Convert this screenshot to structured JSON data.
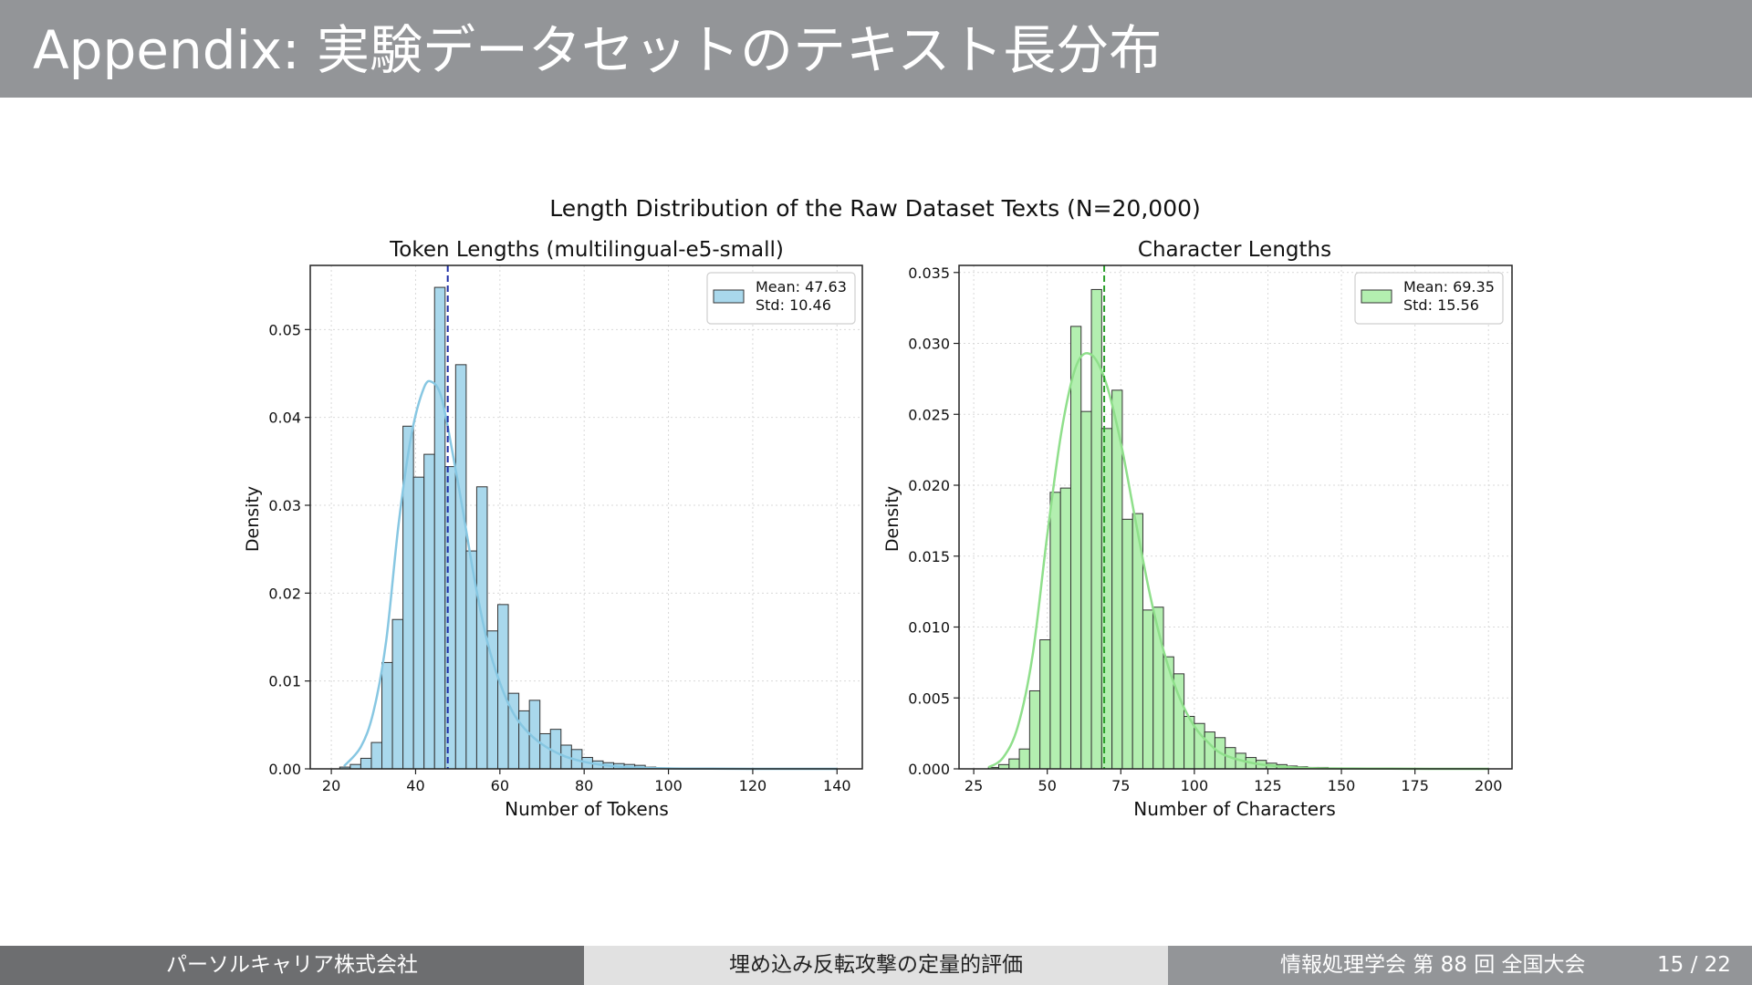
{
  "slide": {
    "title": "Appendix: 実験データセットのテキスト長分布"
  },
  "footer": {
    "company": "パーソルキャリア株式会社",
    "topic": "埋め込み反転攻撃の定量的評価",
    "conference": "情報処理学会 第 88 回 全国大会",
    "page": "15 / 22"
  },
  "colors": {
    "title_bar": "#939598",
    "footer_left": "#6d6e70",
    "footer_center": "#e1e1e1",
    "footer_right": "#939598",
    "token_bars": "#a9d8ec",
    "token_kde": "#87c7e2",
    "token_mean_line": "#1f2fa8",
    "char_bars": "#b3efb0",
    "char_kde": "#8fdf8b",
    "char_mean_line": "#2ca02c"
  },
  "chart_data": [
    {
      "type": "bar",
      "suptitle": "Length Distribution of the Raw Dataset Texts (N=20,000)",
      "title": "Token Lengths (multilingual-e5-small)",
      "xlabel": "Number of Tokens",
      "ylabel": "Density",
      "xlim": [
        15,
        146
      ],
      "ylim": [
        0,
        0.0573
      ],
      "xticks": [
        "20",
        "40",
        "60",
        "80",
        "100",
        "120",
        "140"
      ],
      "yticks": [
        "0.00",
        "0.01",
        "0.02",
        "0.03",
        "0.04",
        "0.05"
      ],
      "grid": true,
      "bin_start": 22,
      "bin_width": 2.5,
      "values": [
        0.0002,
        0.0005,
        0.0012,
        0.003,
        0.0121,
        0.017,
        0.039,
        0.0332,
        0.0358,
        0.0548,
        0.0344,
        0.046,
        0.0248,
        0.0321,
        0.0157,
        0.0187,
        0.0086,
        0.0066,
        0.0078,
        0.004,
        0.0045,
        0.0027,
        0.0022,
        0.0013,
        0.0009,
        0.0007,
        0.0006,
        0.0005,
        0.0004,
        0.0002,
        0.0001,
        0.0001,
        0.0001,
        5e-05,
        3e-05
      ],
      "kde_x": [
        23,
        27,
        30,
        33,
        36,
        39,
        42,
        44,
        46,
        48,
        51,
        54,
        57,
        60,
        63,
        66,
        70,
        75,
        80,
        85,
        90,
        100,
        110,
        125,
        140
      ],
      "kde_y": [
        0.0003,
        0.0025,
        0.0065,
        0.0145,
        0.028,
        0.038,
        0.0434,
        0.044,
        0.0425,
        0.038,
        0.03,
        0.0215,
        0.0145,
        0.0098,
        0.0065,
        0.0045,
        0.0028,
        0.0015,
        0.0008,
        0.0004,
        0.0002,
        5e-05,
        2e-05,
        0.0,
        0.0
      ],
      "mean": 47.63,
      "legend": {
        "position": "top-right",
        "mean_label": "Mean: 47.63",
        "std_label": "Std: 10.46"
      }
    },
    {
      "type": "bar",
      "title": "Character Lengths",
      "xlabel": "Number of Characters",
      "ylabel": "Density",
      "xlim": [
        20,
        208
      ],
      "ylim": [
        0,
        0.0355
      ],
      "xticks": [
        "25",
        "50",
        "75",
        "100",
        "125",
        "150",
        "175",
        "200"
      ],
      "yticks": [
        "0.000",
        "0.005",
        "0.010",
        "0.015",
        "0.020",
        "0.025",
        "0.030",
        "0.035"
      ],
      "grid": true,
      "bin_start": 30,
      "bin_width": 3.5,
      "values": [
        0.0001,
        0.0003,
        0.0007,
        0.0014,
        0.0055,
        0.0091,
        0.0195,
        0.0198,
        0.0312,
        0.0252,
        0.0338,
        0.024,
        0.0267,
        0.0176,
        0.018,
        0.0112,
        0.0114,
        0.0079,
        0.0067,
        0.0037,
        0.0032,
        0.0026,
        0.0022,
        0.0015,
        0.0011,
        0.0008,
        0.0006,
        0.0004,
        0.0003,
        0.0002,
        0.00015,
        0.0001,
        0.0001,
        5e-05
      ],
      "kde_x": [
        30,
        35,
        40,
        45,
        50,
        55,
        60,
        65,
        70,
        75,
        80,
        85,
        90,
        95,
        100,
        105,
        110,
        120,
        130,
        140,
        160,
        180,
        200
      ],
      "kde_y": [
        0.0001,
        0.0008,
        0.003,
        0.008,
        0.0165,
        0.024,
        0.0285,
        0.0292,
        0.0272,
        0.023,
        0.0175,
        0.0122,
        0.008,
        0.005,
        0.003,
        0.0018,
        0.001,
        0.0004,
        0.00015,
        5e-05,
        2e-05,
        0.0,
        0.0
      ],
      "mean": 69.35,
      "legend": {
        "position": "top-right",
        "mean_label": "Mean: 69.35",
        "std_label": "Std: 15.56"
      }
    }
  ]
}
